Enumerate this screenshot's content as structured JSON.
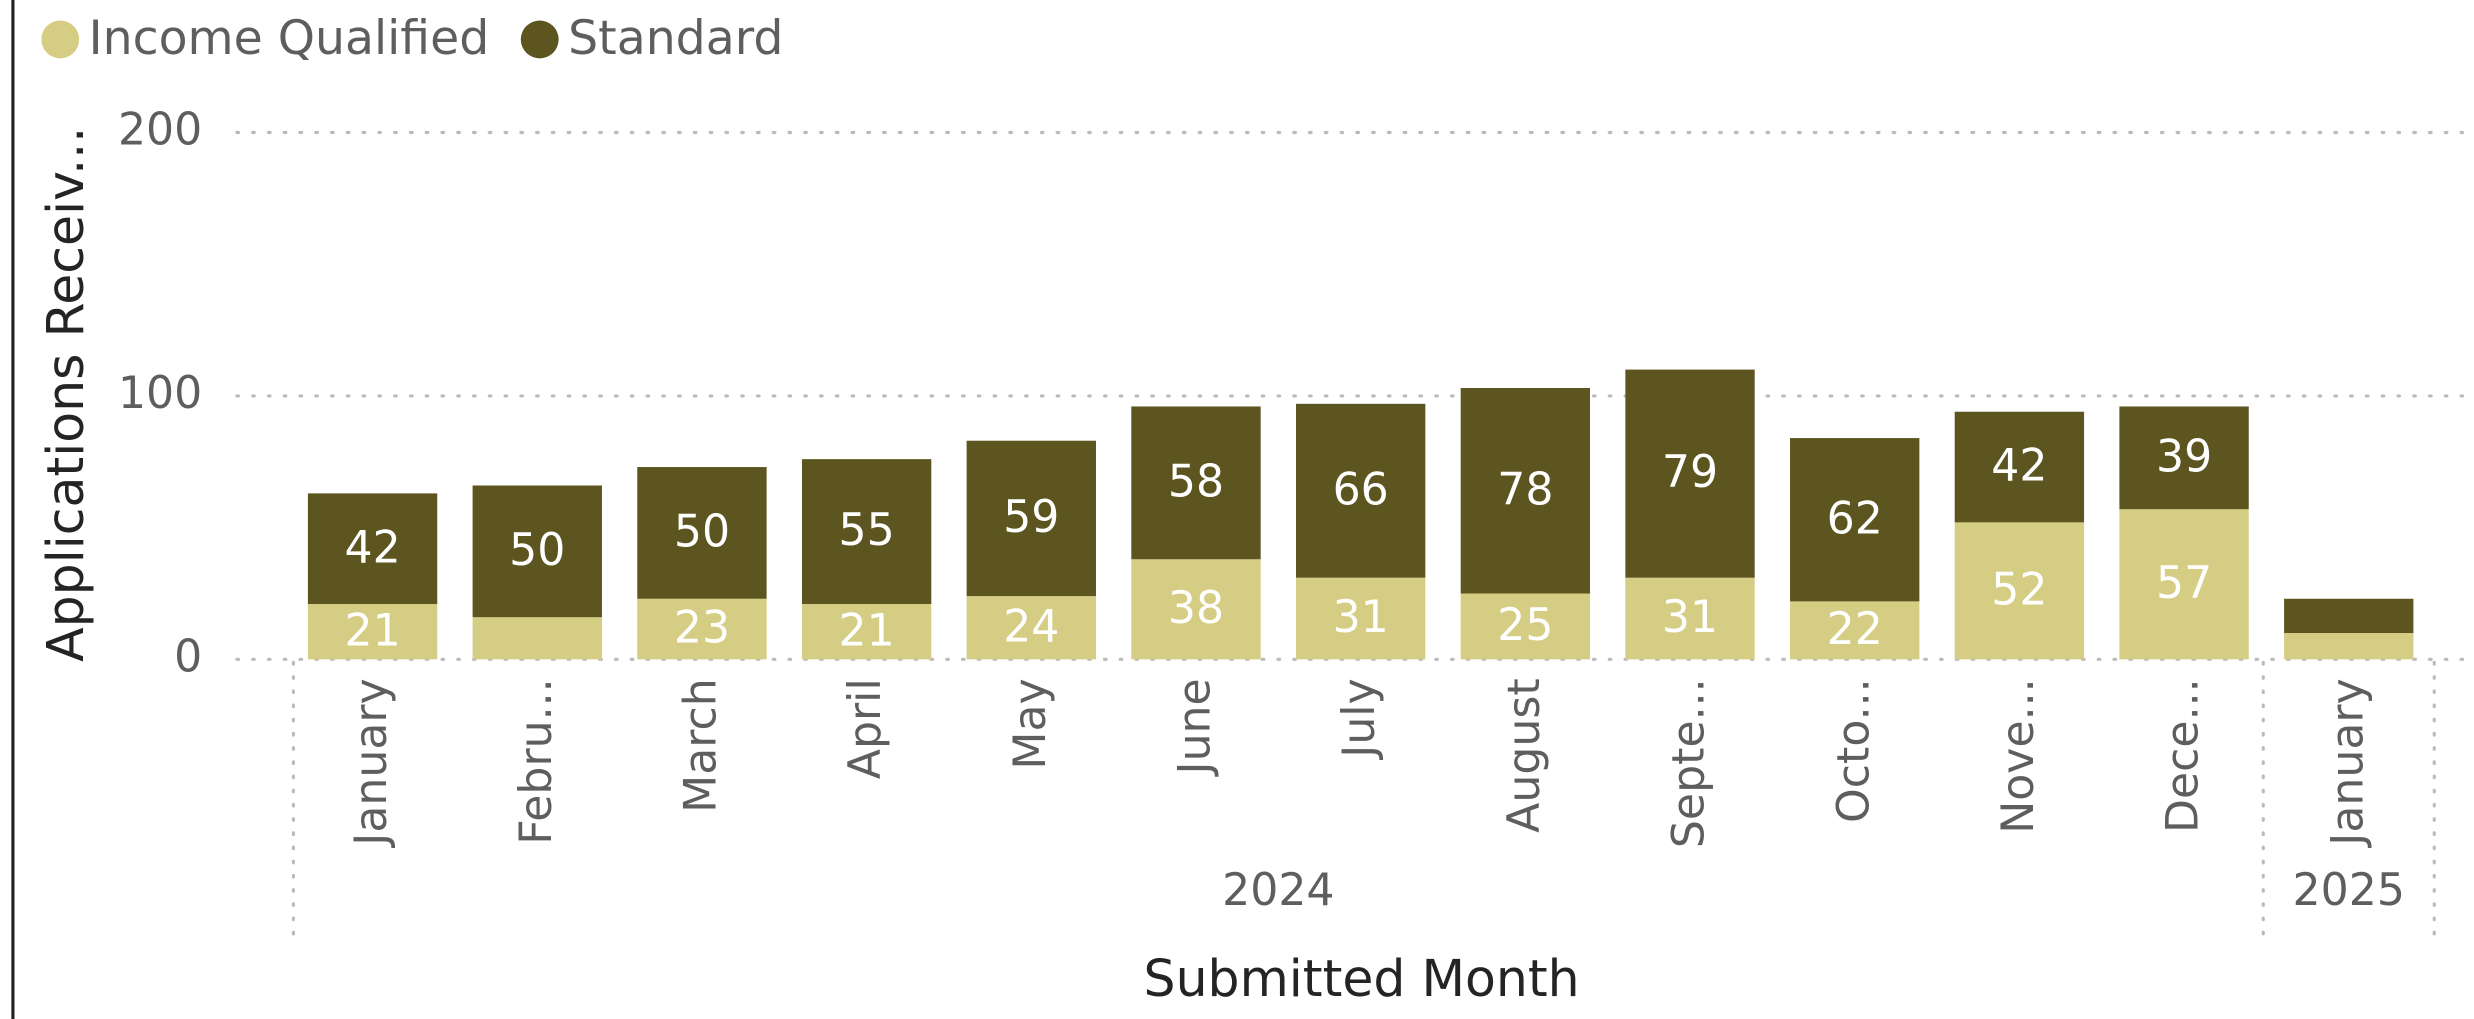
{
  "chart_data": {
    "type": "stacked_bar",
    "x_label": "Submitted Month",
    "y_label": "Applications Receiv...",
    "categories": [
      "January",
      "Febru...",
      "March",
      "April",
      "May",
      "June",
      "July",
      "August",
      "Septe...",
      "Octo...",
      "Nove...",
      "Dece...",
      "January"
    ],
    "years": [
      "2024",
      "2024",
      "2024",
      "2024",
      "2024",
      "2024",
      "2024",
      "2024",
      "2024",
      "2024",
      "2024",
      "2024",
      "2025"
    ],
    "series": [
      {
        "name": "Income Qualified",
        "color": "#d5cd83",
        "values": [
          21,
          16,
          23,
          21,
          24,
          38,
          31,
          25,
          31,
          22,
          52,
          57,
          10
        ],
        "value_labels": [
          21,
          null,
          23,
          21,
          24,
          38,
          31,
          25,
          31,
          22,
          52,
          57,
          null
        ]
      },
      {
        "name": "Standard",
        "color": "#5c5520",
        "values": [
          42,
          50,
          50,
          55,
          59,
          58,
          66,
          78,
          79,
          62,
          42,
          39,
          13
        ],
        "value_labels": [
          42,
          50,
          50,
          55,
          59,
          58,
          66,
          78,
          79,
          62,
          42,
          39,
          null
        ]
      }
    ],
    "ylim": [
      0,
      200
    ],
    "yticks": [
      0,
      100,
      200
    ],
    "grid": true,
    "legend": "top-left"
  }
}
